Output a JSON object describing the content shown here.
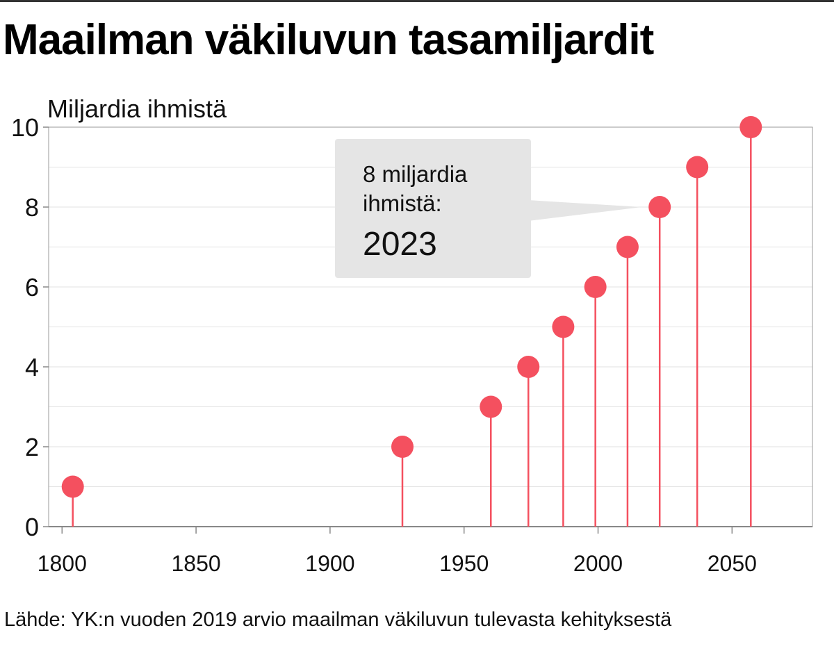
{
  "title": "Maailman väkiluvun tasamiljardit",
  "source": "Lähde: YK:n vuoden 2019 arvio maailman väkiluvun tulevasta kehityksestä",
  "annotation": {
    "label": "8 miljardia ihmistä:",
    "year": "2023"
  },
  "colors": {
    "marker": "#f4505f",
    "callout_bg": "#e5e5e5",
    "grid": "#e2e2e2",
    "axis": "#888888"
  },
  "chart_data": {
    "type": "scatter",
    "style": "lollipop",
    "title": "Maailman väkiluvun tasamiljardit",
    "xlabel": "",
    "ylabel": "Miljardia ihmistä",
    "xlim": [
      1795,
      2080
    ],
    "ylim": [
      0,
      10
    ],
    "xticks": [
      1800,
      1850,
      1900,
      1950,
      2000,
      2050
    ],
    "yticks": [
      0,
      2,
      4,
      6,
      8,
      10
    ],
    "grid": true,
    "series": [
      {
        "x": [
          1804,
          1927,
          1960,
          1974,
          1987,
          1999,
          2011,
          2023,
          2037,
          2057
        ],
        "y": [
          1,
          2,
          3,
          4,
          5,
          6,
          7,
          8,
          9,
          10
        ]
      }
    ],
    "annotation": {
      "x": 2023,
      "y": 8,
      "text": "8 miljardia ihmistä: 2023"
    }
  }
}
